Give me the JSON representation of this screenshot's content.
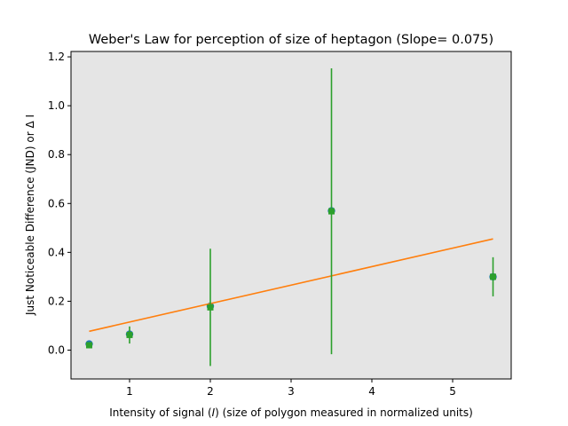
{
  "chart_data": {
    "type": "scatter",
    "title": "Weber's Law for perception of size of heptagon (Slope= 0.075)",
    "xlabel_parts": [
      "Intensity of signal (",
      "I",
      ") (size of polygon measured in normalized units)"
    ],
    "ylabel": "Just Noticeable Difference (JND) or Δ I",
    "xlim": [
      0.275,
      5.725
    ],
    "ylim": [
      -0.118,
      1.222
    ],
    "xticks": [
      1,
      2,
      3,
      4,
      5
    ],
    "xtick_labels": [
      "1",
      "2",
      "3",
      "4",
      "5"
    ],
    "yticks": [
      0.0,
      0.2,
      0.4,
      0.6,
      0.8,
      1.0,
      1.2
    ],
    "ytick_labels": [
      "0.0",
      "0.2",
      "0.4",
      "0.6",
      "0.8",
      "1.0",
      "1.2"
    ],
    "grid": false,
    "background": "#e5e5e5",
    "series": [
      {
        "kind": "points",
        "color": "#1f77b4",
        "x": [
          0.5,
          1.0,
          2.0,
          3.5,
          5.5
        ],
        "y": [
          0.025,
          0.065,
          0.18,
          0.57,
          0.3
        ]
      },
      {
        "kind": "line",
        "color": "#ff7f0e",
        "x": [
          0.5,
          5.5
        ],
        "y": [
          0.077,
          0.455
        ]
      },
      {
        "kind": "errorbar",
        "color": "#2ca02c",
        "x": [
          0.5,
          1.0,
          2.0,
          3.5,
          5.5
        ],
        "y": [
          0.02,
          0.062,
          0.175,
          0.568,
          0.3
        ],
        "yerr": [
          0.005,
          0.035,
          0.24,
          0.585,
          0.08
        ]
      }
    ]
  }
}
